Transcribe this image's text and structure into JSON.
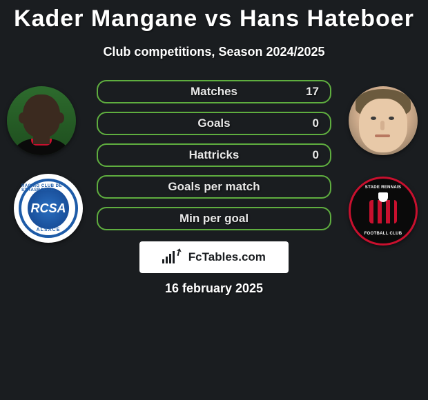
{
  "title": "Kader Mangane vs Hans Hateboer",
  "subtitle": "Club competitions, Season 2024/2025",
  "date": "16 february 2025",
  "fctables_label": "FcTables.com",
  "stat_border_color": "#5fae3f",
  "background_color": "#1a1d20",
  "text_color": "#ffffff",
  "stats": [
    {
      "label": "Matches",
      "value_right": "17"
    },
    {
      "label": "Goals",
      "value_right": "0"
    },
    {
      "label": "Hattricks",
      "value_right": "0"
    },
    {
      "label": "Goals per match",
      "value_right": ""
    },
    {
      "label": "Min per goal",
      "value_right": ""
    }
  ],
  "player_left": {
    "name": "Kader Mangane"
  },
  "player_right": {
    "name": "Hans Hateboer"
  },
  "club_left": {
    "text_top": "RACING CLUB DE STRASBOURG",
    "text_bottom": "ALSACE",
    "monogram": "RCSA"
  },
  "club_right": {
    "text_top": "STADE RENNAIS",
    "text_bottom": "FOOTBALL CLUB"
  }
}
